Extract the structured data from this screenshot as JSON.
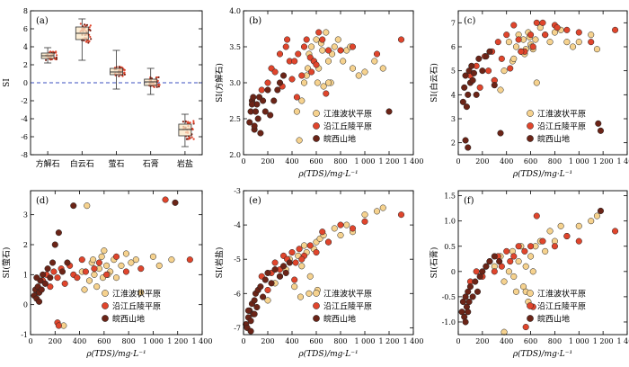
{
  "figure": {
    "legend": {
      "s1": "江淮波状平原",
      "s2": "沿江丘陵平原",
      "s3": "皖西山地"
    },
    "colors": {
      "s1": "#F6D28E",
      "s2": "#E0452C",
      "s3": "#6B2417",
      "dash": "#3B4FBF"
    },
    "x_label_common": "ρ(TDS)/mg·L⁻¹"
  },
  "chart_data": [
    {
      "panel": "(a)",
      "type": "box",
      "title": "",
      "xlabel": "",
      "ylabel": "SI",
      "ylim": [
        -8,
        8
      ],
      "yticks": [
        -8,
        -6,
        -4,
        -2,
        0,
        2,
        4,
        6,
        8
      ],
      "categories": [
        "方解石",
        "白云石",
        "萤石",
        "石膏",
        "岩盐"
      ],
      "boxes": [
        {
          "name": "方解石",
          "min": 2.2,
          "q1": 2.7,
          "median": 3.0,
          "q3": 3.3,
          "max": 3.9
        },
        {
          "name": "白云石",
          "min": 2.5,
          "q1": 4.8,
          "median": 5.5,
          "q3": 6.2,
          "max": 7.1
        },
        {
          "name": "萤石",
          "min": -0.7,
          "q1": 0.9,
          "median": 1.2,
          "q3": 1.6,
          "max": 3.6
        },
        {
          "name": "石膏",
          "min": -1.3,
          "q1": -0.3,
          "median": 0.1,
          "q3": 0.4,
          "max": 1.6
        },
        {
          "name": "岩盐",
          "min": -7.1,
          "q1": -5.9,
          "median": -5.2,
          "q3": -4.6,
          "max": -3.5
        }
      ],
      "reference_line_y": 0
    },
    {
      "panel": "(b)",
      "type": "scatter",
      "ylabel": "SI(方解石)",
      "xlabel": "ρ(TDS)/mg·L⁻¹",
      "xlim": [
        0,
        1400
      ],
      "ylim": [
        2.0,
        4.0
      ],
      "xticks": [
        0,
        200,
        400,
        600,
        800,
        1000,
        1200,
        1400
      ],
      "xtick_labels": [
        "0",
        "200",
        "400",
        "600",
        "800",
        "1 000",
        "1 200",
        "1 400"
      ],
      "yticks": [
        2.0,
        2.5,
        3.0,
        3.5,
        4.0
      ],
      "ytick_labels": [
        "2.0",
        "2.5",
        "3.0",
        "3.5",
        "4.0"
      ],
      "series": [
        {
          "name": "江淮波状平原",
          "x": [
            480,
            520,
            540,
            560,
            580,
            600,
            620,
            650,
            680,
            700,
            720,
            750,
            780,
            820,
            850,
            880,
            900,
            950,
            1000,
            1080,
            1150,
            440,
            460,
            500,
            530,
            610,
            640,
            660,
            700,
            730
          ],
          "y": [
            2.75,
            3.1,
            3.4,
            3.5,
            3.3,
            3.6,
            3.2,
            3.45,
            3.7,
            3.3,
            3.0,
            3.5,
            3.6,
            3.3,
            3.45,
            3.5,
            3.2,
            3.1,
            3.15,
            3.3,
            3.2,
            2.6,
            2.2,
            3.0,
            3.2,
            3.0,
            3.55,
            2.95,
            3.0,
            3.4
          ]
        },
        {
          "name": "沿江丘陵平原",
          "x": [
            150,
            200,
            230,
            260,
            300,
            320,
            350,
            380,
            400,
            420,
            450,
            480,
            500,
            520,
            550,
            580,
            620,
            650,
            700,
            800,
            900,
            1100,
            1300,
            360,
            440,
            560,
            600,
            680
          ],
          "y": [
            2.9,
            3.0,
            3.2,
            3.15,
            3.4,
            2.95,
            3.5,
            3.3,
            3.05,
            3.3,
            3.4,
            3.1,
            3.5,
            3.6,
            3.35,
            3.3,
            3.7,
            3.6,
            3.45,
            3.45,
            3.5,
            3.4,
            3.6,
            3.6,
            2.8,
            3.15,
            3.25,
            2.85
          ]
        },
        {
          "name": "皖西山地",
          "x": [
            50,
            60,
            70,
            80,
            90,
            100,
            110,
            120,
            140,
            160,
            180,
            200,
            220,
            250,
            280,
            300,
            330,
            70,
            90,
            130,
            1200
          ],
          "y": [
            2.45,
            2.6,
            2.75,
            2.8,
            2.35,
            2.6,
            2.7,
            2.5,
            2.3,
            2.75,
            2.6,
            2.9,
            2.55,
            2.75,
            2.9,
            3.0,
            3.1,
            2.7,
            2.4,
            2.8,
            2.6
          ]
        }
      ]
    },
    {
      "panel": "(c)",
      "type": "scatter",
      "ylabel": "SI(白云石)",
      "xlabel": "ρ(TDS)/mg·L⁻¹",
      "xlim": [
        0,
        1400
      ],
      "ylim": [
        1.5,
        7.5
      ],
      "xticks": [
        0,
        200,
        400,
        600,
        800,
        1000,
        1200,
        1400
      ],
      "xtick_labels": [
        "0",
        "200",
        "400",
        "600",
        "800",
        "1 000",
        "1 200",
        "1 400"
      ],
      "yticks": [
        2,
        3,
        4,
        5,
        6,
        7
      ],
      "ytick_labels": [
        "2",
        "3",
        "4",
        "5",
        "6",
        "7"
      ],
      "series": [
        {
          "name": "江淮波状平原",
          "x": [
            380,
            420,
            450,
            480,
            500,
            520,
            540,
            560,
            580,
            600,
            620,
            640,
            680,
            720,
            760,
            800,
            850,
            900,
            950,
            1000,
            1100,
            1150,
            300,
            350,
            460,
            550,
            590,
            610,
            650
          ],
          "y": [
            5.0,
            6.2,
            5.4,
            6.0,
            6.5,
            5.8,
            6.3,
            5.9,
            6.6,
            6.1,
            5.9,
            6.3,
            6.8,
            6.5,
            6.2,
            6.6,
            6.7,
            6.2,
            6.0,
            6.2,
            6.5,
            5.9,
            4.6,
            4.2,
            5.5,
            5.7,
            6.4,
            6.0,
            4.5
          ]
        },
        {
          "name": "沿江丘陵平原",
          "x": [
            100,
            150,
            180,
            220,
            250,
            280,
            300,
            330,
            360,
            400,
            430,
            460,
            500,
            550,
            600,
            650,
            700,
            800,
            900,
            1000,
            1100,
            1300,
            520,
            620,
            720,
            820
          ],
          "y": [
            4.8,
            5.2,
            4.3,
            5.6,
            5.0,
            5.8,
            4.6,
            6.2,
            5.5,
            6.5,
            5.1,
            6.9,
            6.3,
            5.8,
            6.5,
            7.0,
            7.0,
            6.9,
            6.7,
            6.6,
            6.2,
            6.7,
            5.8,
            6.0,
            6.5,
            6.8
          ]
        },
        {
          "name": "皖西山地",
          "x": [
            40,
            50,
            60,
            70,
            80,
            90,
            100,
            110,
            130,
            150,
            170,
            200,
            230,
            260,
            300,
            350,
            1160,
            1180,
            60,
            80,
            120
          ],
          "y": [
            3.7,
            4.3,
            4.8,
            3.5,
            4.0,
            5.0,
            4.5,
            5.2,
            4.9,
            4.0,
            5.5,
            5.0,
            5.6,
            5.8,
            4.4,
            2.4,
            2.8,
            2.5,
            2.1,
            1.8,
            4.6
          ]
        }
      ]
    },
    {
      "panel": "(d)",
      "type": "scatter",
      "ylabel": "SI(萤石)",
      "xlabel": "ρ(TDS)/mg·L⁻¹",
      "xlim": [
        0,
        1400
      ],
      "ylim": [
        -1.0,
        3.8
      ],
      "xticks": [
        0,
        200,
        400,
        600,
        800,
        1000,
        1200,
        1400
      ],
      "xtick_labels": [
        "0",
        "200",
        "400",
        "600",
        "800",
        "1 000",
        "1 200",
        "1 400"
      ],
      "yticks": [
        -1,
        0,
        1,
        2,
        3
      ],
      "ytick_labels": [
        "-1",
        "0",
        "1",
        "2",
        "3"
      ],
      "series": [
        {
          "name": "江淮波状平原",
          "x": [
            420,
            460,
            480,
            500,
            520,
            540,
            560,
            580,
            600,
            620,
            650,
            680,
            700,
            740,
            780,
            820,
            860,
            900,
            1000,
            1050,
            1150,
            440,
            510,
            590,
            630,
            270
          ],
          "y": [
            1.1,
            3.3,
            0.8,
            1.4,
            1.0,
            0.6,
            1.2,
            1.6,
            1.8,
            1.3,
            1.1,
            1.5,
            0.9,
            1.3,
            1.7,
            1.4,
            1.5,
            0.4,
            1.6,
            1.3,
            1.5,
            0.5,
            1.5,
            0.9,
            1.0,
            -0.7
          ]
        },
        {
          "name": "沿江丘陵平原",
          "x": [
            100,
            130,
            160,
            190,
            220,
            250,
            280,
            320,
            350,
            380,
            420,
            450,
            520,
            560,
            620,
            700,
            780,
            900,
            1100,
            1300,
            220,
            230
          ],
          "y": [
            0.8,
            1.0,
            0.6,
            1.1,
            0.9,
            1.2,
            0.7,
            1.3,
            1.0,
            0.9,
            1.5,
            1.1,
            1.2,
            1.4,
            1.0,
            1.6,
            1.1,
            1.2,
            3.5,
            1.5,
            -0.6,
            -0.7
          ]
        },
        {
          "name": "皖西山地",
          "x": [
            30,
            40,
            50,
            60,
            70,
            80,
            90,
            100,
            120,
            140,
            160,
            180,
            200,
            230,
            260,
            300,
            350,
            50,
            70,
            1180
          ],
          "y": [
            0.3,
            0.5,
            0.2,
            0.6,
            0.4,
            0.8,
            0.5,
            1.0,
            0.7,
            1.2,
            0.9,
            1.4,
            2.0,
            2.4,
            1.1,
            1.4,
            3.3,
            0.9,
            0.1,
            3.4
          ]
        }
      ]
    },
    {
      "panel": "(e)",
      "type": "scatter",
      "ylabel": "SI(岩盐)",
      "xlabel": "ρ(TDS)/mg·L⁻¹",
      "xlim": [
        0,
        1400
      ],
      "ylim": [
        -7.2,
        -3.0
      ],
      "xticks": [
        0,
        200,
        400,
        600,
        800,
        1000,
        1200,
        1400
      ],
      "xtick_labels": [
        "0",
        "200",
        "400",
        "600",
        "800",
        "1 000",
        "1 200",
        "1 400"
      ],
      "yticks": [
        -7,
        -6,
        -5,
        -4,
        -3
      ],
      "ytick_labels": [
        "-7",
        "-6",
        "-5",
        "-4",
        "-3"
      ],
      "series": [
        {
          "name": "江淮波状平原",
          "x": [
            200,
            260,
            300,
            350,
            380,
            420,
            450,
            480,
            500,
            520,
            550,
            580,
            600,
            630,
            660,
            700,
            750,
            800,
            850,
            900,
            1000,
            1100,
            1150,
            470,
            540,
            610
          ],
          "y": [
            -6.2,
            -5.7,
            -5.5,
            -5.3,
            -5.0,
            -5.8,
            -4.9,
            -5.2,
            -4.6,
            -4.8,
            -5.5,
            -4.7,
            -4.5,
            -4.4,
            -4.3,
            -4.5,
            -4.1,
            -4.3,
            -4.0,
            -4.2,
            -3.7,
            -3.6,
            -3.5,
            -6.1,
            -6.0,
            -5.9
          ]
        },
        {
          "name": "沿江丘陵平原",
          "x": [
            150,
            200,
            230,
            260,
            300,
            330,
            360,
            400,
            430,
            460,
            500,
            550,
            600,
            650,
            700,
            800,
            900,
            1000,
            1300,
            420,
            480
          ],
          "y": [
            -5.5,
            -5.9,
            -5.4,
            -5.1,
            -5.3,
            -4.9,
            -5.0,
            -4.8,
            -5.1,
            -4.7,
            -4.9,
            -4.6,
            -4.8,
            -4.2,
            -4.5,
            -4.0,
            -4.1,
            -3.9,
            -3.7,
            -5.6,
            -5.0
          ]
        },
        {
          "name": "皖西山地",
          "x": [
            20,
            30,
            40,
            50,
            60,
            70,
            80,
            90,
            100,
            110,
            120,
            140,
            160,
            180,
            200,
            230,
            260,
            300,
            330,
            350,
            380,
            40,
            60,
            90
          ],
          "y": [
            -6.9,
            -7.0,
            -6.7,
            -6.5,
            -6.8,
            -6.3,
            -6.6,
            -6.2,
            -6.0,
            -6.4,
            -5.9,
            -5.8,
            -6.1,
            -5.6,
            -5.4,
            -5.7,
            -5.3,
            -5.5,
            -5.2,
            -5.4,
            -5.1,
            -6.5,
            -7.1,
            -6.6
          ]
        }
      ]
    },
    {
      "panel": "(f)",
      "type": "scatter",
      "ylabel": "SI(石膏)",
      "xlabel": "ρ(TDS)/mg·L⁻¹",
      "xlim": [
        0,
        1400
      ],
      "ylim": [
        -1.25,
        1.6
      ],
      "xticks": [
        0,
        200,
        400,
        600,
        800,
        1000,
        1200,
        1400
      ],
      "xtick_labels": [
        "0",
        "200",
        "400",
        "600",
        "800",
        "1 000",
        "1 200",
        "1 400"
      ],
      "yticks": [
        -1.0,
        -0.5,
        0,
        0.5,
        1.0,
        1.5
      ],
      "ytick_labels": [
        "-1.0",
        "-0.5",
        "0",
        "0.5",
        "1.0",
        "1.5"
      ],
      "series": [
        {
          "name": "江淮波状平原",
          "x": [
            300,
            350,
            380,
            420,
            450,
            480,
            500,
            520,
            540,
            560,
            580,
            600,
            640,
            680,
            720,
            760,
            800,
            850,
            900,
            1000,
            1100,
            1150,
            460,
            560,
            620,
            380
          ],
          "y": [
            0.1,
            0.3,
            -0.2,
            0.0,
            0.4,
            -0.4,
            0.2,
            0.5,
            -0.3,
            0.1,
            -0.6,
            0.3,
            0.5,
            0.6,
            0.4,
            0.8,
            0.6,
            0.9,
            0.7,
            0.9,
            1.0,
            1.1,
            -0.1,
            -0.4,
            0.0,
            -1.2
          ]
        },
        {
          "name": "沿江丘陵平原",
          "x": [
            100,
            150,
            200,
            230,
            260,
            300,
            330,
            360,
            400,
            430,
            460,
            500,
            550,
            600,
            650,
            700,
            800,
            900,
            1000,
            1300,
            560,
            620
          ],
          "y": [
            -0.2,
            0.0,
            -0.1,
            0.1,
            0.2,
            0.0,
            0.3,
            0.1,
            0.4,
            0.2,
            0.3,
            0.5,
            0.4,
            0.5,
            1.1,
            0.6,
            0.5,
            0.7,
            0.6,
            0.8,
            -1.1,
            -0.7
          ]
        },
        {
          "name": "皖西山地",
          "x": [
            30,
            40,
            50,
            60,
            70,
            80,
            90,
            100,
            120,
            140,
            160,
            180,
            200,
            230,
            260,
            300,
            340,
            60,
            80,
            1180
          ],
          "y": [
            -0.8,
            -0.6,
            -0.9,
            -0.5,
            -0.7,
            -0.4,
            -0.6,
            -0.3,
            -0.5,
            -0.2,
            -0.4,
            -0.1,
            0.0,
            0.1,
            0.2,
            0.3,
            0.2,
            -1.0,
            -0.8,
            1.2
          ]
        }
      ]
    }
  ]
}
